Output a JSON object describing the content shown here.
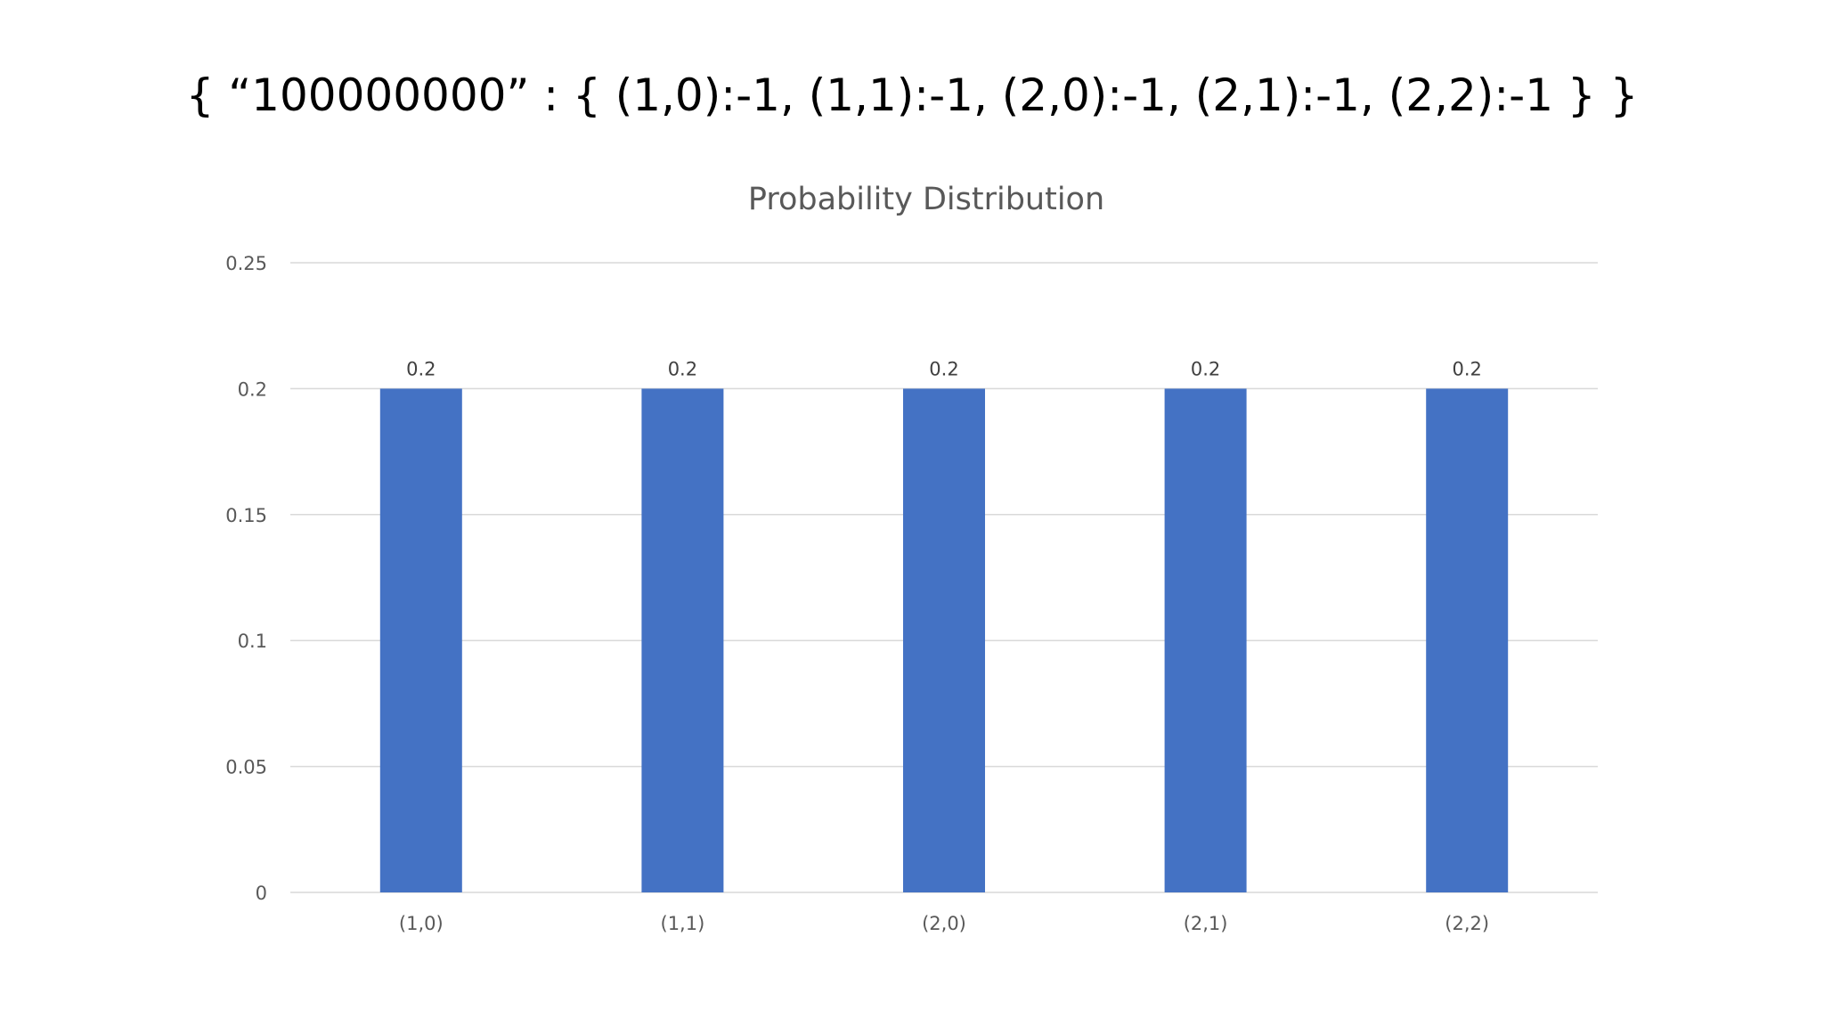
{
  "slide": {
    "title": "{ “100000000” : { (1,0):-1, (1,1):-1, (2,0):-1, (2,1):-1, (2,2):-1 } }"
  },
  "chart_data": {
    "type": "bar",
    "title": "Probability Distribution",
    "xlabel": "",
    "ylabel": "",
    "categories": [
      "(1,0)",
      "(1,1)",
      "(2,0)",
      "(2,1)",
      "(2,2)"
    ],
    "values": [
      0.2,
      0.2,
      0.2,
      0.2,
      0.2
    ],
    "data_labels": [
      "0.2",
      "0.2",
      "0.2",
      "0.2",
      "0.2"
    ],
    "ylim": [
      0,
      0.25
    ],
    "yticks": [
      0,
      0.05,
      0.1,
      0.15,
      0.2,
      0.25
    ],
    "ytick_labels": [
      "0",
      "0.05",
      "0.1",
      "0.15",
      "0.2",
      "0.25"
    ],
    "grid": true,
    "legend": "none",
    "bar_color": "#4472C4"
  }
}
